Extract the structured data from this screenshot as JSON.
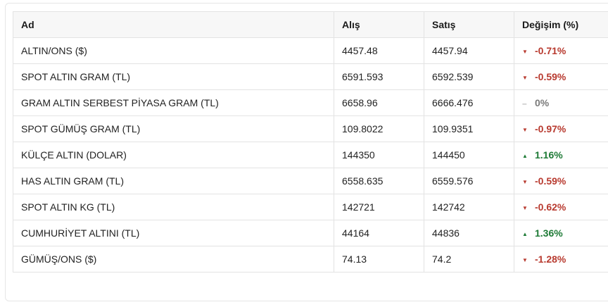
{
  "table": {
    "header": [
      "Ad",
      "Alış",
      "Satış",
      "Değişim (%)"
    ],
    "rows": [
      [
        "ALTIN/ONS ($)",
        "4457.48",
        "4457.94",
        "-0.71%"
      ],
      [
        "SPOT ALTIN GRAM (TL)",
        "6591.593",
        "6592.539",
        "-0.59%"
      ],
      [
        "GRAM ALTIN SERBEST PİYASA GRAM (TL)",
        "6658.96",
        "6666.476",
        "0%"
      ],
      [
        "SPOT GÜMÜŞ GRAM (TL)",
        "109.8022",
        "109.9351",
        "-0.97%"
      ],
      [
        "KÜLÇE ALTIN (DOLAR)",
        "144350",
        "144450",
        "1.16%"
      ],
      [
        "HAS ALTIN GRAM (TL)",
        "6558.635",
        "6559.576",
        "-0.59%"
      ],
      [
        "SPOT ALTIN KG (TL)",
        "142721",
        "142742",
        "-0.62%"
      ],
      [
        "CUMHURİYET ALTINI (TL)",
        "44164",
        "44836",
        "1.36%"
      ],
      [
        "GÜMÜŞ/ONS ($)",
        "74.13",
        "74.2",
        "-1.28%"
      ]
    ]
  }
}
